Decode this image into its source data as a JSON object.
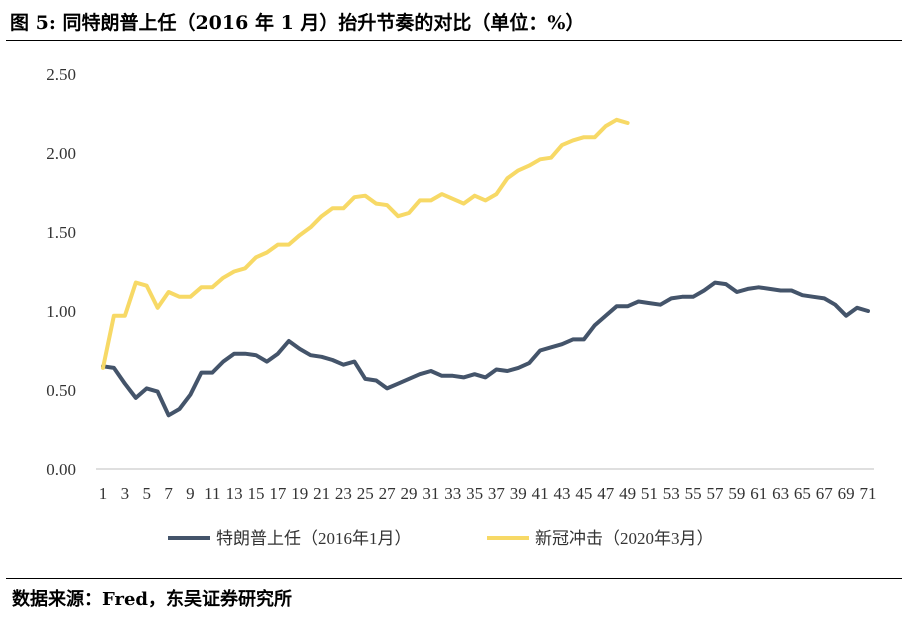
{
  "figure": {
    "title": "图 5:  同特朗普上任（2016 年 1 月）抬升节奏的对比（单位：%）",
    "source": "数据来源：Fred，东吴证券研究所"
  },
  "chart_data": {
    "type": "line",
    "title": "",
    "xlabel": "",
    "ylabel": "",
    "ylim": [
      0,
      2.5
    ],
    "yticks": [
      "0.00",
      "0.50",
      "1.00",
      "1.50",
      "2.00",
      "2.50"
    ],
    "xlim": [
      1,
      71
    ],
    "xticks": [
      1,
      3,
      5,
      7,
      9,
      11,
      13,
      15,
      17,
      19,
      21,
      23,
      25,
      27,
      29,
      31,
      33,
      35,
      37,
      39,
      41,
      43,
      45,
      47,
      49,
      51,
      53,
      55,
      57,
      59,
      61,
      63,
      65,
      67,
      69,
      71
    ],
    "grid": false,
    "legend": "bottom",
    "series": [
      {
        "name": "特朗普上任（2016年1月）",
        "color": "#44546a",
        "x": [
          1,
          2,
          3,
          4,
          5,
          6,
          7,
          8,
          9,
          10,
          11,
          12,
          13,
          14,
          15,
          16,
          17,
          18,
          19,
          20,
          21,
          22,
          23,
          24,
          25,
          26,
          27,
          28,
          29,
          30,
          31,
          32,
          33,
          34,
          35,
          36,
          37,
          38,
          39,
          40,
          41,
          42,
          43,
          44,
          45,
          46,
          47,
          48,
          49,
          50,
          51,
          52,
          53,
          54,
          55,
          56,
          57,
          58,
          59,
          60,
          61,
          62,
          63,
          64,
          65,
          66,
          67,
          68,
          69,
          70,
          71
        ],
        "values": [
          0.65,
          0.64,
          0.54,
          0.45,
          0.51,
          0.49,
          0.34,
          0.38,
          0.47,
          0.61,
          0.61,
          0.68,
          0.73,
          0.73,
          0.72,
          0.68,
          0.73,
          0.81,
          0.76,
          0.72,
          0.71,
          0.69,
          0.66,
          0.68,
          0.57,
          0.56,
          0.51,
          0.54,
          0.57,
          0.6,
          0.62,
          0.59,
          0.59,
          0.58,
          0.6,
          0.58,
          0.63,
          0.62,
          0.64,
          0.67,
          0.75,
          0.77,
          0.79,
          0.82,
          0.82,
          0.91,
          0.97,
          1.03,
          1.03,
          1.06,
          1.05,
          1.04,
          1.08,
          1.09,
          1.09,
          1.13,
          1.18,
          1.17,
          1.12,
          1.14,
          1.15,
          1.14,
          1.13,
          1.13,
          1.1,
          1.09,
          1.08,
          1.04,
          0.97,
          1.02,
          1.0
        ]
      },
      {
        "name": "新冠冲击（2020年3月）",
        "color": "#f7d966",
        "x": [
          1,
          2,
          3,
          4,
          5,
          6,
          7,
          8,
          9,
          10,
          11,
          12,
          13,
          14,
          15,
          16,
          17,
          18,
          19,
          20,
          21,
          22,
          23,
          24,
          25,
          26,
          27,
          28,
          29,
          30,
          31,
          32,
          33,
          34,
          35,
          36,
          37,
          38,
          39,
          40,
          41,
          42,
          43,
          44,
          45,
          46,
          47,
          48,
          49
        ],
        "values": [
          0.64,
          0.97,
          0.97,
          1.18,
          1.16,
          1.02,
          1.12,
          1.09,
          1.09,
          1.15,
          1.15,
          1.21,
          1.25,
          1.27,
          1.34,
          1.37,
          1.42,
          1.42,
          1.48,
          1.53,
          1.6,
          1.65,
          1.65,
          1.72,
          1.73,
          1.68,
          1.67,
          1.6,
          1.62,
          1.7,
          1.7,
          1.74,
          1.71,
          1.68,
          1.73,
          1.7,
          1.74,
          1.84,
          1.89,
          1.92,
          1.96,
          1.97,
          2.05,
          2.08,
          2.1,
          2.1,
          2.17,
          2.21,
          2.19
        ]
      }
    ]
  }
}
